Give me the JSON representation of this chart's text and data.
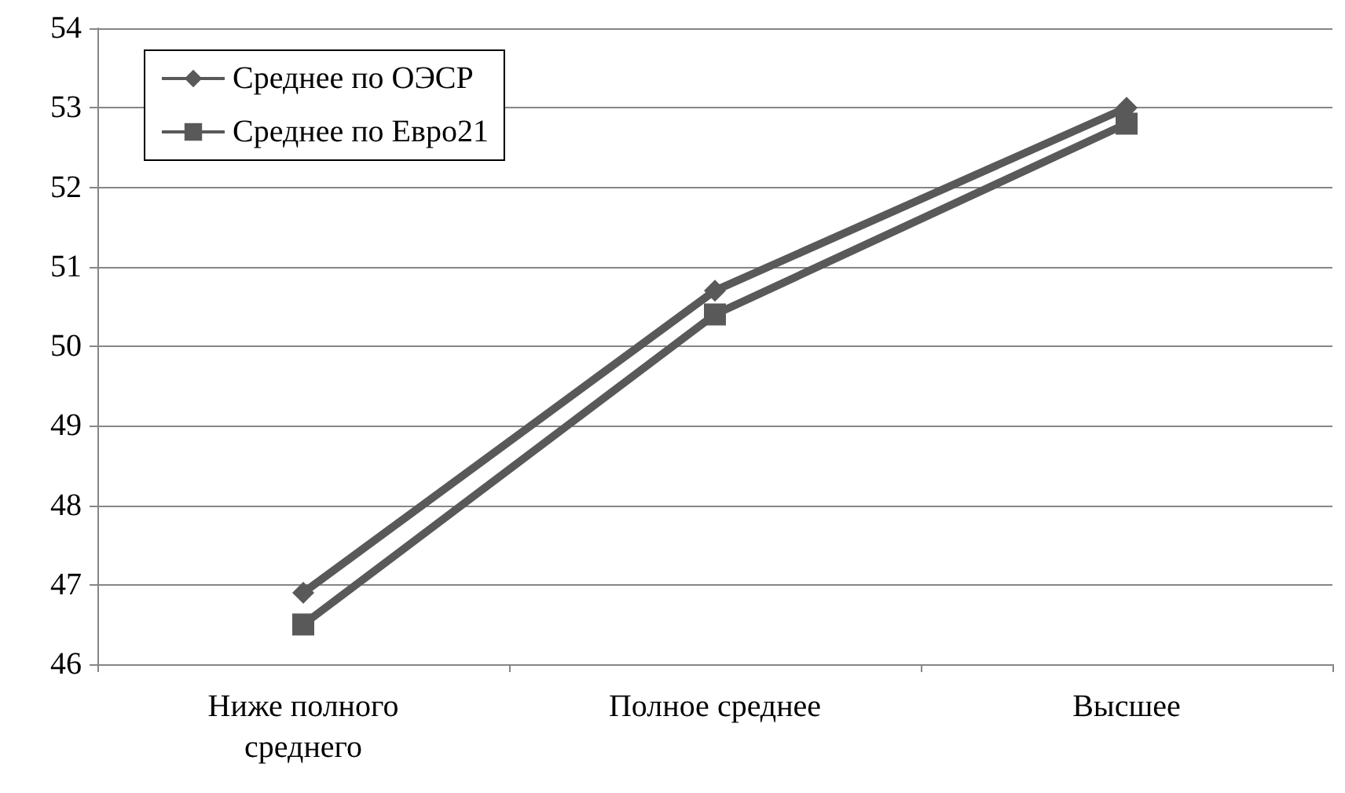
{
  "chart_data": {
    "type": "line",
    "categories": [
      "Ниже полного\nсреднего",
      "Полное среднее",
      "Высшее"
    ],
    "series": [
      {
        "name": "Среднее по ОЭСР",
        "color": "#595959",
        "marker": "diamond",
        "values": [
          46.9,
          50.7,
          53.0
        ]
      },
      {
        "name": "Среднее по Евро21",
        "color": "#595959",
        "marker": "square",
        "values": [
          46.5,
          50.4,
          52.8
        ]
      }
    ],
    "ylim": [
      46,
      54
    ],
    "yticks": [
      46,
      47,
      48,
      49,
      50,
      51,
      52,
      53,
      54
    ],
    "grid": "y",
    "legend": "top left",
    "line_style": "solid"
  }
}
